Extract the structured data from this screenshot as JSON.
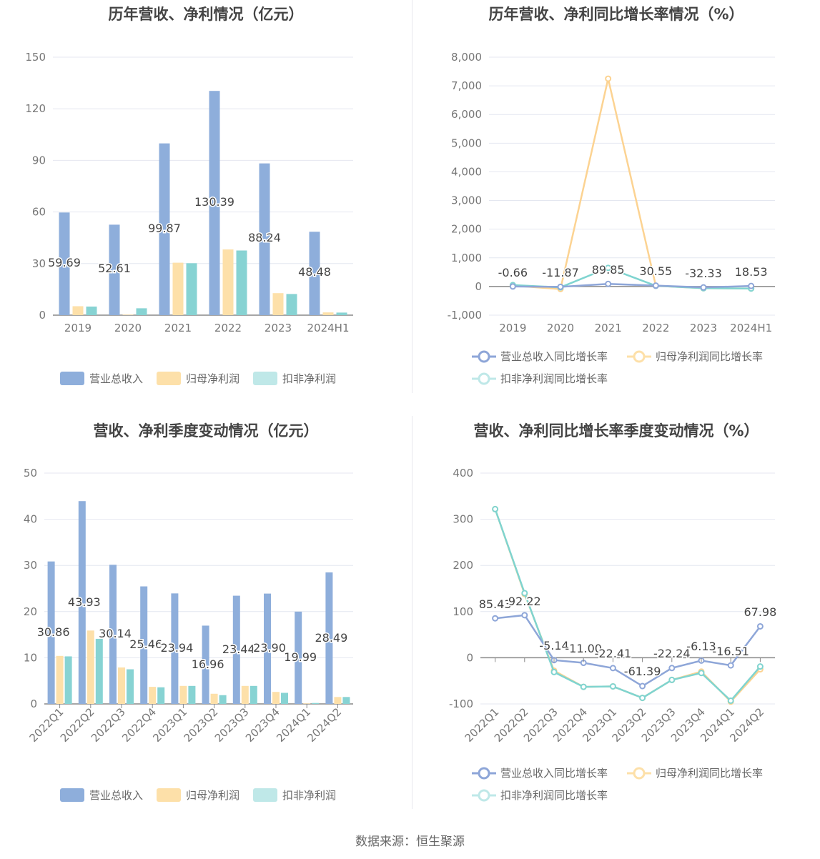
{
  "colors": {
    "revenue": "#8eaedb",
    "parent_profit": "#fde0a9",
    "deducted_profit": "#87d3d3",
    "rev_line": "#8ea6d8",
    "parent_line": "#fcd392",
    "ded_line": "#7fd4d0"
  },
  "source": "数据来源：恒生聚源",
  "legends": {
    "bar": [
      "营业总收入",
      "归母净利润",
      "扣非净利润"
    ],
    "line": [
      "营业总收入同比增长率",
      "归母净利润同比增长率",
      "扣非净利润同比增长率"
    ]
  },
  "chart_data": [
    {
      "id": "annual-bar",
      "type": "bar",
      "title": "历年营收、净利情况（亿元）",
      "categories": [
        "2019",
        "2020",
        "2021",
        "2022",
        "2023",
        "2024H1"
      ],
      "ylim": [
        0,
        150
      ],
      "yticks": [
        "0",
        "30",
        "60",
        "90",
        "120",
        "150"
      ],
      "series": [
        {
          "name": "营业总收入",
          "values": [
            59.69,
            52.61,
            99.87,
            130.39,
            88.24,
            48.48
          ],
          "labels": [
            "59.69",
            "52.61",
            "99.87",
            "130.39",
            "88.24",
            "48.48"
          ]
        },
        {
          "name": "归母净利润",
          "values": [
            5.2,
            0.3,
            30.5,
            38.2,
            12.8,
            1.6
          ]
        },
        {
          "name": "扣非净利润",
          "values": [
            5.0,
            4.0,
            30.2,
            37.6,
            12.3,
            1.5
          ]
        }
      ]
    },
    {
      "id": "annual-line",
      "type": "line",
      "title": "历年营收、净利同比增长率情况（%）",
      "categories": [
        "2019",
        "2020",
        "2021",
        "2022",
        "2023",
        "2024H1"
      ],
      "ylim": [
        -1000,
        8000
      ],
      "yticks": [
        "-1,000",
        "0",
        "1,000",
        "2,000",
        "3,000",
        "4,000",
        "5,000",
        "6,000",
        "7,000",
        "8,000"
      ],
      "series": [
        {
          "name": "营业总收入同比增长率",
          "values": [
            -0.66,
            -11.87,
            89.85,
            30.55,
            -32.33,
            18.53
          ],
          "labels": [
            "-0.66",
            "-11.87",
            "89.85",
            "30.55",
            "-32.33",
            "18.53"
          ]
        },
        {
          "name": "归母净利润同比增长率",
          "values": [
            30,
            -90,
            7250,
            25,
            -60,
            -70
          ]
        },
        {
          "name": "扣非净利润同比增长率",
          "values": [
            50,
            -30,
            650,
            25,
            -60,
            -70
          ]
        }
      ]
    },
    {
      "id": "quarter-bar",
      "type": "bar",
      "title": "营收、净利季度变动情况（亿元）",
      "categories": [
        "2022Q1",
        "2022Q2",
        "2022Q3",
        "2022Q4",
        "2023Q1",
        "2023Q2",
        "2023Q3",
        "2023Q4",
        "2024Q1",
        "2024Q2"
      ],
      "ylim": [
        0,
        50
      ],
      "yticks": [
        "0",
        "10",
        "20",
        "30",
        "40",
        "50"
      ],
      "series": [
        {
          "name": "营业总收入",
          "values": [
            30.86,
            43.93,
            30.14,
            25.46,
            23.94,
            16.96,
            23.44,
            23.9,
            19.99,
            28.49
          ],
          "labels": [
            "30.86",
            "43.93",
            "30.14",
            "25.46",
            "23.94",
            "16.96",
            "23.44",
            "23.90",
            "19.99",
            "28.49"
          ]
        },
        {
          "name": "归母净利润",
          "values": [
            10.4,
            15.9,
            7.9,
            3.7,
            3.9,
            2.2,
            3.9,
            2.6,
            0.1,
            1.5
          ]
        },
        {
          "name": "扣非净利润",
          "values": [
            10.3,
            14.1,
            7.5,
            3.6,
            3.9,
            1.9,
            3.9,
            2.4,
            0.2,
            1.5
          ]
        }
      ]
    },
    {
      "id": "quarter-line",
      "type": "line",
      "title": "营收、净利同比增长率季度变动情况（%）",
      "categories": [
        "2022Q1",
        "2022Q2",
        "2022Q3",
        "2022Q4",
        "2023Q1",
        "2023Q2",
        "2023Q3",
        "2023Q4",
        "2024Q1",
        "2024Q2"
      ],
      "ylim": [
        -100,
        400
      ],
      "yticks": [
        "-100",
        "0",
        "100",
        "200",
        "300",
        "400"
      ],
      "series": [
        {
          "name": "营业总收入同比增长率",
          "values": [
            85.43,
            92.22,
            -5.14,
            -11.0,
            -22.41,
            -61.39,
            -22.24,
            -6.13,
            -16.51,
            67.98
          ],
          "labels": [
            "85.43",
            "92.22",
            "-5.14",
            "-11.00",
            "-22.41",
            "-61.39",
            "-22.24",
            "-6.13",
            "-16.51",
            "67.98"
          ]
        },
        {
          "name": "归母净利润同比增长率",
          "values": [
            322,
            138,
            -28,
            -63,
            -62,
            -87,
            -48,
            -30,
            -95,
            -25
          ]
        },
        {
          "name": "扣非净利润同比增长率",
          "values": [
            322,
            140,
            -31,
            -63,
            -62,
            -87,
            -48,
            -33,
            -93,
            -19
          ]
        }
      ]
    }
  ]
}
